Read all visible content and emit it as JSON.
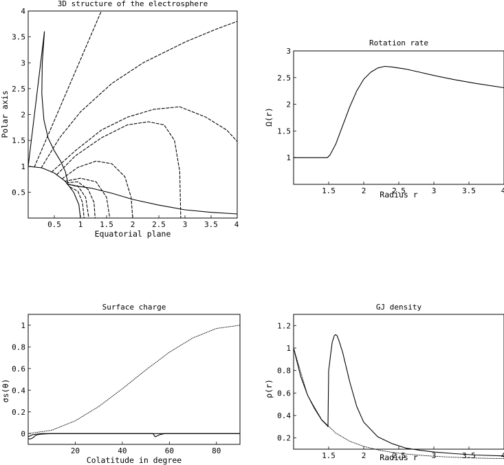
{
  "chart_data": [
    {
      "type": "line",
      "title": "3D structure of the electrosphere",
      "xlabel": "Equatorial plane",
      "ylabel": "Polar axis",
      "xlim": [
        0,
        4
      ],
      "ylim": [
        0,
        4
      ],
      "xticks": [
        "0.5",
        "1",
        "1.5",
        "2",
        "2.5",
        "3",
        "3.5",
        "4"
      ],
      "yticks": [
        "0.5",
        "1",
        "1.5",
        "2",
        "2.5",
        "3",
        "3.5",
        "4"
      ],
      "grid": false,
      "series": [
        {
          "style": "solid",
          "x": [
            0.0,
            0.26,
            0.5,
            0.71,
            0.87,
            0.97,
            1.0
          ],
          "y": [
            1.0,
            0.97,
            0.87,
            0.71,
            0.5,
            0.26,
            0.0
          ]
        },
        {
          "style": "solid",
          "x": [
            0.0,
            0.31
          ],
          "y": [
            1.0,
            3.6
          ]
        },
        {
          "style": "solid",
          "x": [
            0.31,
            0.27,
            0.26,
            0.3,
            0.38,
            0.5,
            0.62,
            0.71,
            0.76
          ],
          "y": [
            3.6,
            3.0,
            2.4,
            1.9,
            1.55,
            1.3,
            1.1,
            0.9,
            0.68
          ]
        },
        {
          "style": "solid",
          "x": [
            0.74,
            0.9,
            1.2,
            1.6,
            2.0,
            2.5,
            3.0,
            3.5,
            4.0
          ],
          "y": [
            0.66,
            0.62,
            0.58,
            0.48,
            0.36,
            0.25,
            0.16,
            0.11,
            0.08
          ]
        },
        {
          "style": "dashed",
          "x": [
            0.12,
            1.4
          ],
          "y": [
            0.99,
            4.0
          ]
        },
        {
          "style": "dashed",
          "x": [
            0.25,
            0.6,
            1.0,
            1.6,
            2.2,
            3.0,
            3.6,
            4.0
          ],
          "y": [
            0.97,
            1.55,
            2.05,
            2.6,
            3.0,
            3.4,
            3.65,
            3.8
          ]
        },
        {
          "style": "dashed",
          "x": [
            0.45,
            0.9,
            1.4,
            1.9,
            2.4,
            2.9,
            3.4,
            3.8,
            4.0
          ],
          "y": [
            0.89,
            1.3,
            1.7,
            1.95,
            2.1,
            2.15,
            1.95,
            1.7,
            1.48
          ]
        },
        {
          "style": "dashed",
          "x": [
            0.55,
            0.9,
            1.4,
            1.9,
            2.3,
            2.6,
            2.8,
            2.9,
            2.92
          ],
          "y": [
            0.84,
            1.2,
            1.55,
            1.8,
            1.86,
            1.8,
            1.5,
            0.9,
            0.0
          ]
        },
        {
          "style": "dashed",
          "x": [
            0.65,
            0.95,
            1.3,
            1.6,
            1.85,
            1.97,
            2.0
          ],
          "y": [
            0.76,
            0.98,
            1.1,
            1.05,
            0.8,
            0.4,
            0.0
          ]
        },
        {
          "style": "dashed",
          "x": [
            0.7,
            1.0,
            1.3,
            1.5,
            1.56
          ],
          "y": [
            0.71,
            0.77,
            0.7,
            0.4,
            0.0
          ]
        },
        {
          "style": "dashed",
          "x": [
            0.73,
            0.95,
            1.15,
            1.26,
            1.28
          ],
          "y": [
            0.68,
            0.7,
            0.55,
            0.3,
            0.0
          ]
        },
        {
          "style": "dashed",
          "x": [
            0.76,
            0.95,
            1.1,
            1.16
          ],
          "y": [
            0.65,
            0.62,
            0.4,
            0.0
          ]
        },
        {
          "style": "dashed",
          "x": [
            0.8,
            0.95,
            1.04,
            1.07
          ],
          "y": [
            0.6,
            0.52,
            0.3,
            0.0
          ]
        }
      ]
    },
    {
      "type": "line",
      "title": "Rotation rate",
      "xlabel": "Radius r",
      "ylabel": "Ω(r)",
      "xlim": [
        1,
        4
      ],
      "ylim": [
        0.5,
        3
      ],
      "xticks": [
        "1.5",
        "2",
        "2.5",
        "3",
        "3.5",
        "4"
      ],
      "yticks": [
        "1",
        "1.5",
        "2",
        "2.5",
        "3"
      ],
      "grid": false,
      "series": [
        {
          "style": "solid",
          "x": [
            1.0,
            1.48,
            1.52,
            1.6,
            1.7,
            1.8,
            1.9,
            2.0,
            2.1,
            2.2,
            2.3,
            2.4,
            2.6,
            2.8,
            3.0,
            3.3,
            3.6,
            4.0
          ],
          "y": [
            1.0,
            1.0,
            1.05,
            1.25,
            1.6,
            1.95,
            2.25,
            2.47,
            2.6,
            2.68,
            2.71,
            2.7,
            2.66,
            2.6,
            2.54,
            2.46,
            2.39,
            2.31
          ]
        }
      ]
    },
    {
      "type": "line",
      "title": "Surface charge",
      "xlabel": "Colatitude in degree",
      "ylabel": "σs(θ)",
      "xlim": [
        0,
        90
      ],
      "ylim": [
        -0.1,
        1.1
      ],
      "xticks": [
        "20",
        "40",
        "60",
        "80"
      ],
      "yticks": [
        "0",
        "0.2",
        "0.4",
        "0.6",
        "0.8",
        "1"
      ],
      "grid": false,
      "series": [
        {
          "style": "dotted",
          "x": [
            0,
            10,
            20,
            30,
            40,
            50,
            60,
            70,
            80,
            90
          ],
          "y": [
            0.0,
            0.03,
            0.117,
            0.25,
            0.413,
            0.587,
            0.75,
            0.883,
            0.97,
            1.0
          ]
        },
        {
          "style": "solid",
          "x": [
            0,
            1,
            2,
            3,
            4,
            6,
            10,
            20,
            40,
            50,
            53,
            54,
            55,
            56,
            58,
            70,
            90
          ],
          "y": [
            -0.05,
            -0.05,
            -0.04,
            -0.02,
            -0.01,
            -0.005,
            0.0,
            0.0,
            0.0,
            0.0,
            0.0,
            -0.03,
            -0.02,
            -0.01,
            0.0,
            0.0,
            0.0
          ]
        },
        {
          "style": "solid",
          "x": [
            0,
            1,
            2,
            4,
            6,
            10,
            20,
            40,
            60,
            90
          ],
          "y": [
            -0.03,
            -0.02,
            -0.01,
            -0.005,
            0.0,
            0.0,
            0.0,
            0.0,
            0.0,
            0.0
          ]
        }
      ]
    },
    {
      "type": "line",
      "title": "GJ density",
      "xlabel": "Radius r",
      "ylabel": "ρ(r)",
      "xlim": [
        1,
        4
      ],
      "ylim": [
        0.1,
        1.3
      ],
      "xticks": [
        "1.5",
        "2",
        "2.5",
        "3",
        "3.5",
        "4"
      ],
      "yticks": [
        "0.2",
        "0.4",
        "0.6",
        "0.8",
        "1",
        "1.2"
      ],
      "grid": false,
      "series": [
        {
          "style": "dotted",
          "x": [
            1.0,
            1.2,
            1.4,
            1.6,
            1.8,
            2.0,
            2.2,
            2.4,
            2.6,
            2.8,
            3.0,
            3.3,
            3.6,
            4.0
          ],
          "y": [
            1.0,
            0.579,
            0.364,
            0.244,
            0.171,
            0.125,
            0.094,
            0.072,
            0.057,
            0.046,
            0.037,
            0.028,
            0.021,
            0.016
          ]
        },
        {
          "style": "solid",
          "x": [
            1.0,
            1.1,
            1.2,
            1.3,
            1.4,
            1.48,
            1.49,
            1.5,
            1.52,
            1.55,
            1.58,
            1.6,
            1.62,
            1.65,
            1.7,
            1.8,
            1.9,
            2.0,
            2.2,
            2.4,
            2.6,
            2.8,
            3.0,
            3.3,
            3.6,
            4.0
          ],
          "y": [
            1.0,
            0.75,
            0.58,
            0.46,
            0.36,
            0.31,
            0.3,
            0.8,
            0.9,
            1.05,
            1.11,
            1.12,
            1.11,
            1.06,
            0.96,
            0.7,
            0.48,
            0.34,
            0.21,
            0.15,
            0.11,
            0.09,
            0.075,
            0.06,
            0.048,
            0.04
          ]
        }
      ]
    }
  ]
}
